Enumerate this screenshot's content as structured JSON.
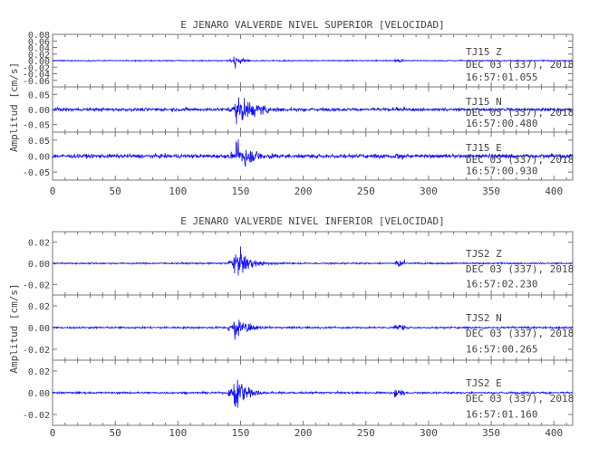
{
  "chart_data": [
    {
      "type": "line",
      "title": "E JENARO VALVERDE NIVEL SUPERIOR [VELOCIDAD]",
      "ylabel": "Amplitud [cm/s]",
      "xlabel": "",
      "xlim": [
        0,
        415
      ],
      "x_ticks": [
        "0",
        "50",
        "100",
        "150",
        "200",
        "250",
        "300",
        "350",
        "400"
      ],
      "series_color": "#1010ff",
      "panels": [
        {
          "name": "TJ15 Z",
          "station": "TJ15",
          "component": "Z",
          "date_line": "DEC 03 (337), 2018",
          "time_line": "16:57:01.055",
          "ylim": [
            -0.08,
            0.08
          ],
          "y_ticks": [
            "0.08",
            "0.06",
            "0.04",
            "0.02",
            "0.00",
            "-0.02",
            "-0.04",
            "-0.06"
          ],
          "event_onset_s": 144,
          "peak_abs": 0.035,
          "decay_s": 5,
          "secondary_event_s": 277,
          "noise": 0.0015
        },
        {
          "name": "TJ15 N",
          "station": "TJ15",
          "component": "N",
          "date_line": "DEC 03 (337), 2018",
          "time_line": "16:57:00.480",
          "ylim": [
            -0.075,
            0.075
          ],
          "y_ticks": [
            "0.05",
            "0.00",
            "-0.05"
          ],
          "event_onset_s": 145,
          "peak_abs": 0.065,
          "decay_s": 16,
          "secondary_event_s": 277,
          "noise": 0.005
        },
        {
          "name": "TJ15 E",
          "station": "TJ15",
          "component": "E",
          "date_line": "DEC 03 (337), 2018",
          "time_line": "16:57:00.930",
          "ylim": [
            -0.075,
            0.075
          ],
          "y_ticks": [
            "0.05",
            "0.00",
            "-0.05"
          ],
          "event_onset_s": 145,
          "peak_abs": 0.06,
          "decay_s": 13,
          "secondary_event_s": 277,
          "noise": 0.006
        }
      ]
    },
    {
      "type": "line",
      "title": "E JENARO VALVERDE NIVEL INFERIOR [VELOCIDAD]",
      "ylabel": "Amplitud [cm/s]",
      "xlabel": "",
      "xlim": [
        0,
        415
      ],
      "x_ticks": [
        "0",
        "50",
        "100",
        "150",
        "200",
        "250",
        "300",
        "350",
        "400"
      ],
      "series_color": "#1010ff",
      "panels": [
        {
          "name": "TJS2 Z",
          "station": "TJS2",
          "component": "Z",
          "date_line": "DEC 03 (337), 2018",
          "time_line": "16:57:02.230",
          "ylim": [
            -0.03,
            0.03
          ],
          "y_ticks": [
            "0.02",
            "0.00",
            "-0.02"
          ],
          "event_onset_s": 144,
          "peak_abs": 0.025,
          "decay_s": 9,
          "secondary_event_s": 277,
          "noise": 0.0007
        },
        {
          "name": "TJS2 N",
          "station": "TJS2",
          "component": "N",
          "date_line": "DEC 03 (337), 2018",
          "time_line": "16:57:00.265",
          "ylim": [
            -0.03,
            0.03
          ],
          "y_ticks": [
            "0.02",
            "0.00",
            "-0.02"
          ],
          "event_onset_s": 144,
          "peak_abs": 0.02,
          "decay_s": 8,
          "secondary_event_s": 277,
          "noise": 0.0008
        },
        {
          "name": "TJS2 E",
          "station": "TJS2",
          "component": "E",
          "date_line": "DEC 03 (337), 2018",
          "time_line": "16:57:01.160",
          "ylim": [
            -0.03,
            0.03
          ],
          "y_ticks": [
            "0.02",
            "0.00",
            "-0.02"
          ],
          "event_onset_s": 144,
          "peak_abs": 0.028,
          "decay_s": 8,
          "secondary_event_s": 277,
          "noise": 0.0008
        }
      ]
    }
  ]
}
